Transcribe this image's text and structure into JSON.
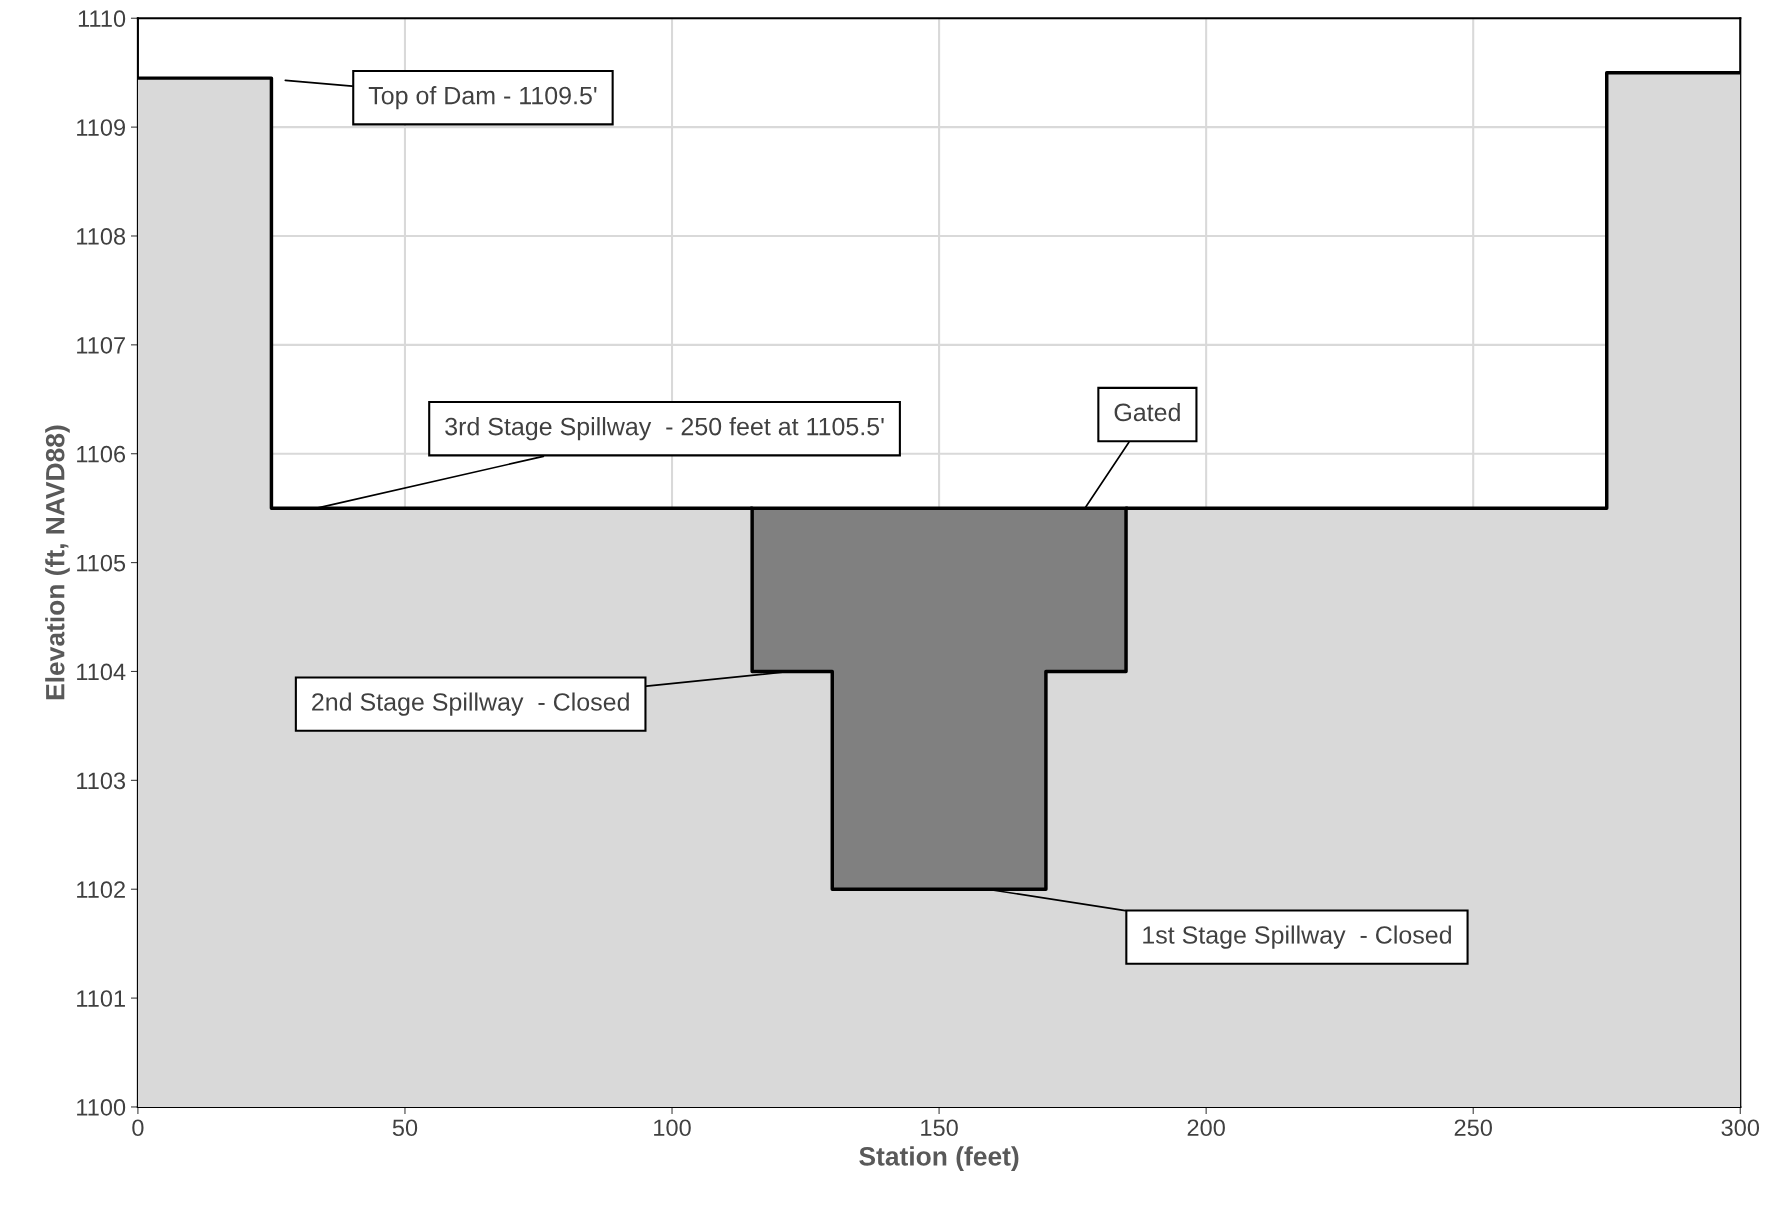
{
  "chart_data": {
    "type": "area",
    "xlabel": "Station (feet)",
    "ylabel": "Elevation (ft, NAVD88)",
    "xlim": [
      0,
      300
    ],
    "xticks": [
      0,
      50,
      100,
      150,
      200,
      250,
      300
    ],
    "ylim": [
      1100,
      1110
    ],
    "yticks": [
      1100,
      1101,
      1102,
      1103,
      1104,
      1105,
      1106,
      1107,
      1108,
      1109,
      1110
    ],
    "grid": true,
    "series": [
      {
        "color": "#808080",
        "x": [
          115,
          185
        ],
        "values": [
          1105.5,
          1105.5
        ]
      },
      {
        "color": "#d9d9d9",
        "x": [
          0,
          25,
          25,
          115,
          115,
          130,
          130,
          170,
          170,
          185,
          185,
          275,
          275,
          300
        ],
        "values": [
          1109.45,
          1109.45,
          1105.5,
          1105.5,
          1104,
          1104,
          1102,
          1102,
          1104,
          1104,
          1105.5,
          1105.5,
          1109.5,
          1109.5
        ]
      }
    ],
    "annotations": [
      "Top of Dam - 1109.5'",
      {
        "text": "3rd Stage Spillway  - 250 feet at 1105.5'",
        "x": 33.5,
        "y": 1105.5
      },
      {
        "text": "Gated",
        "x": 177.3,
        "y": 1105.5
      },
      {
        "text": "2nd Stage Spillway  - Closed",
        "x": 122,
        "y": 1104
      },
      {
        "text": "1st Stage Spillway  - Closed",
        "x": 159,
        "y": 1102
      }
    ]
  }
}
